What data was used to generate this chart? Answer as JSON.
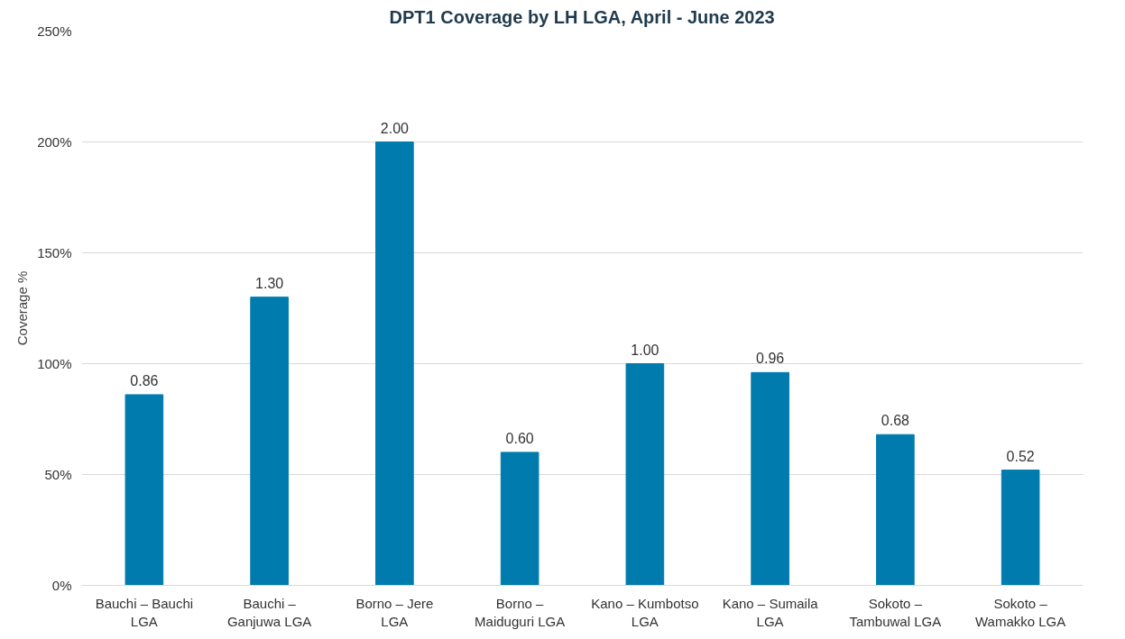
{
  "chart_data": {
    "type": "bar",
    "title": "DPT1 Coverage by LH LGA, April - June 2023",
    "ylabel": "Coverage %",
    "categories": [
      "Bauchi – Bauchi LGA",
      "Bauchi – Ganjuwa LGA",
      "Borno – Jere LGA",
      "Borno – Maiduguri LGA",
      "Kano – Kumbotso LGA",
      "Kano – Sumaila LGA",
      "Sokoto – Tambuwal LGA",
      "Sokoto – Wamakko LGA"
    ],
    "values": [
      0.86,
      1.3,
      2.0,
      0.6,
      1.0,
      0.96,
      0.68,
      0.52
    ],
    "value_labels": [
      "0.86",
      "1.30",
      "2.00",
      "0.60",
      "1.00",
      "0.96",
      "0.68",
      "0.52"
    ],
    "color": "#007bad",
    "ylim": [
      0,
      2.5
    ],
    "yticks": [
      {
        "value": 0,
        "label": "0%"
      },
      {
        "value": 0.5,
        "label": "50%"
      },
      {
        "value": 1,
        "label": "100%"
      },
      {
        "value": 1.5,
        "label": "150%"
      },
      {
        "value": 2,
        "label": "200%"
      },
      {
        "value": 2.5,
        "label": "250%"
      }
    ],
    "grid": "y"
  }
}
